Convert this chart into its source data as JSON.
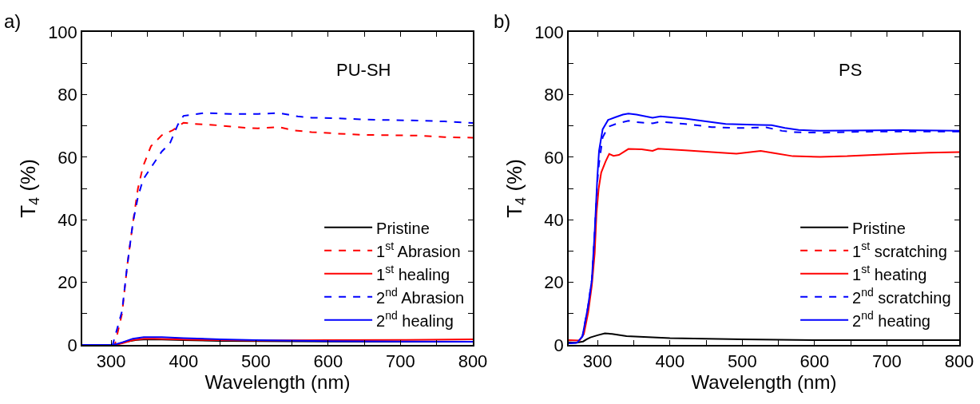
{
  "chart_data": [
    {
      "type": "line",
      "title": "a)",
      "xlabel": "Wavelength (nm)",
      "ylabel": "T$_{4}$ (%)",
      "annotations": [
        "PU-SH"
      ],
      "xlim": [
        260,
        800
      ],
      "xticks": [
        300,
        {
          "value": 350,
          "label": null
        },
        400,
        {
          "value": 450,
          "label": null
        },
        500,
        {
          "value": 550,
          "label": null
        },
        600,
        {
          "value": 650,
          "label": null
        },
        700,
        {
          "value": 750,
          "label": null
        },
        800
      ],
      "ylim": [
        0,
        100
      ],
      "yticks": [
        0,
        {
          "value": 10,
          "label": null
        },
        20,
        {
          "value": 30,
          "label": null
        },
        40,
        {
          "value": 50,
          "label": null
        },
        60,
        {
          "value": 70,
          "label": null
        },
        80,
        {
          "value": 90,
          "label": null
        },
        100
      ],
      "grid": false,
      "legend": "bottom right",
      "marker": "none",
      "series": [
        {
          "name": "Pristine",
          "color": "#000000",
          "line_style": "solid",
          "x": [
            260,
            300,
            310,
            320,
            335,
            350,
            370,
            400,
            450,
            500,
            600,
            700,
            800
          ],
          "values": [
            0,
            0,
            0.3,
            1,
            1.6,
            1.8,
            1.7,
            1.5,
            1.3,
            1.2,
            1.1,
            1.0,
            1.0
          ]
        },
        {
          "name": "1$^{st}$ Abrasion",
          "color": "#ff0000",
          "line_style": "dashed",
          "x": [
            260,
            300,
            305,
            315,
            322,
            330,
            337,
            344,
            355,
            370,
            385,
            400,
            411,
            440,
            485,
            503,
            532,
            551,
            577,
            614,
            650,
            724,
            761,
            800
          ],
          "values": [
            0,
            0,
            0,
            10,
            25,
            39,
            50,
            57,
            63.5,
            67,
            68.6,
            71,
            70.7,
            70.3,
            69.4,
            69.2,
            69.6,
            68.6,
            68,
            67.5,
            67.1,
            66.9,
            66.4,
            66.2
          ]
        },
        {
          "name": "1$^{st}$ healing",
          "color": "#ff0000",
          "line_style": "solid",
          "x": [
            260,
            305,
            315,
            330,
            345,
            360,
            400,
            450,
            500,
            600,
            700,
            800
          ],
          "values": [
            0,
            0,
            0.5,
            1.5,
            2.0,
            2.0,
            1.7,
            1.5,
            1.4,
            1.5,
            1.6,
            1.8
          ]
        },
        {
          "name": "2$^{nd}$ Abrasion",
          "color": "#0000ff",
          "line_style": "dashed",
          "x": [
            260,
            300,
            302,
            315,
            322,
            330,
            337,
            344,
            355,
            370,
            381,
            392,
            400,
            429,
            466,
            503,
            532,
            558,
            577,
            614,
            650,
            724,
            761,
            800
          ],
          "values": [
            0,
            0,
            0,
            10.8,
            25,
            39,
            47.3,
            52.8,
            56.7,
            61.8,
            64.3,
            70.3,
            73.2,
            74.1,
            73.8,
            73.8,
            74.1,
            73,
            72.6,
            72.4,
            72,
            71.7,
            71.4,
            70.9
          ]
        },
        {
          "name": "2$^{nd}$ healing",
          "color": "#0000ff",
          "line_style": "solid",
          "x": [
            260,
            303,
            315,
            330,
            345,
            370,
            400,
            450,
            500,
            600,
            700,
            800
          ],
          "values": [
            0,
            0,
            0.8,
            2.0,
            2.5,
            2.5,
            2.2,
            1.8,
            1.5,
            1.2,
            1.1,
            1.0
          ]
        }
      ]
    },
    {
      "type": "line",
      "title": "b)",
      "xlabel": "Wavelength (nm)",
      "ylabel": "T$_{4}$ (%)",
      "annotations": [
        "PS"
      ],
      "xlim": [
        260,
        800
      ],
      "xticks": [
        300,
        {
          "value": 350,
          "label": null
        },
        400,
        {
          "value": 450,
          "label": null
        },
        500,
        {
          "value": 550,
          "label": null
        },
        600,
        {
          "value": 650,
          "label": null
        },
        700,
        {
          "value": 750,
          "label": null
        },
        800
      ],
      "ylim": [
        0,
        100
      ],
      "yticks": [
        0,
        {
          "value": 10,
          "label": null
        },
        20,
        {
          "value": 30,
          "label": null
        },
        40,
        {
          "value": 50,
          "label": null
        },
        60,
        {
          "value": 70,
          "label": null
        },
        80,
        {
          "value": 90,
          "label": null
        },
        100
      ],
      "grid": false,
      "legend": "bottom right",
      "marker": "none",
      "series": [
        {
          "name": "Pristine",
          "color": "#000000",
          "line_style": "solid",
          "x": [
            260,
            270,
            280,
            285,
            290,
            300,
            310,
            320,
            340,
            370,
            400,
            450,
            500,
            600,
            700,
            800
          ],
          "values": [
            0.8,
            0.7,
            1.1,
            1.8,
            2.4,
            3.1,
            3.7,
            3.5,
            2.8,
            2.5,
            2.2,
            2.0,
            1.8,
            1.5,
            1.5,
            1.5
          ]
        },
        {
          "name": "1$^{st}$ scratching",
          "color": "#ff0000",
          "line_style": "dashed",
          "values": [
            null
          ]
        },
        {
          "name": "1$^{st}$ heating",
          "color": "#ff0000",
          "line_style": "solid",
          "x": [
            260,
            275,
            281,
            287,
            292,
            296,
            298.5,
            301.5,
            305,
            311,
            316,
            322,
            329.5,
            342.6,
            361,
            376,
            383.6,
            421,
            458,
            492,
            525.5,
            544,
            570,
            607.7,
            645,
            682,
            720,
            757,
            800
          ],
          "values": [
            1.5,
            1.4,
            3.5,
            10.4,
            19,
            29.3,
            42.2,
            50,
            55.1,
            58.6,
            61,
            60.4,
            60.7,
            62.6,
            62.5,
            62,
            62.7,
            62.2,
            61.6,
            61.1,
            62,
            61.3,
            60.3,
            60.1,
            60.3,
            60.7,
            61.1,
            61.4,
            61.6
          ]
        },
        {
          "name": "2$^{nd}$ scratching",
          "color": "#0000ff",
          "line_style": "dashed",
          "x": [
            260,
            271.6,
            279,
            286.6,
            292,
            296,
            299.6,
            302,
            307,
            314.6,
            327.6,
            342.6,
            353.8,
            376,
            387,
            421,
            458,
            495.7,
            533,
            555,
            570,
            607.7,
            682,
            800
          ],
          "values": [
            0.5,
            0.7,
            2.7,
            12.1,
            20.7,
            36.2,
            52,
            58,
            66.3,
            69.7,
            70.8,
            71.6,
            71.2,
            70.8,
            71.3,
            70.6,
            69.6,
            69.3,
            69.5,
            68.4,
            68,
            67.8,
            68.2,
            68.2
          ]
        },
        {
          "name": "2$^{nd}$ heating",
          "color": "#0000ff",
          "line_style": "solid",
          "x": [
            260,
            271.6,
            279,
            286.6,
            292,
            296,
            299.6,
            302,
            307,
            314.6,
            324,
            335,
            342.6,
            353.8,
            376,
            387,
            421,
            458,
            477,
            525.5,
            540.5,
            559,
            578,
            607.7,
            720,
            800
          ],
          "values": [
            0.5,
            0.7,
            2.7,
            12.1,
            20.7,
            36.2,
            53.4,
            62,
            68.9,
            71.9,
            72.7,
            73.6,
            73.9,
            73.6,
            72.6,
            73,
            72.3,
            71.2,
            70.6,
            70.3,
            70.2,
            69.3,
            68.7,
            68.4,
            68.6,
            68.4
          ]
        }
      ]
    }
  ]
}
